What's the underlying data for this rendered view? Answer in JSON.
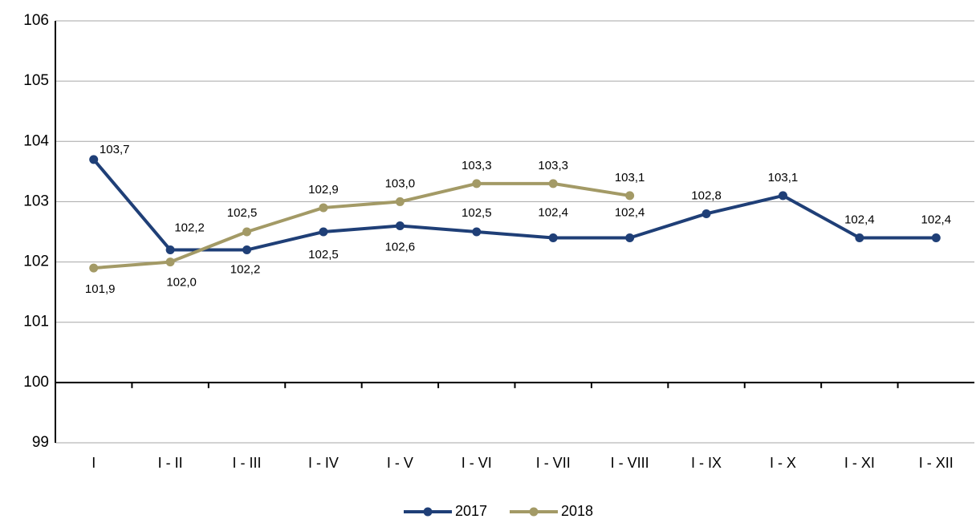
{
  "chart_data": {
    "type": "line",
    "categories": [
      "I",
      "I - II",
      "I - III",
      "I - IV",
      "I - V",
      "I - VI",
      "I - VII",
      "I - VIII",
      "I - IX",
      "I - X",
      "I - XI",
      "I - XII"
    ],
    "series": [
      {
        "name": "2017",
        "color": "#1f3f77",
        "values": [
          103.7,
          102.2,
          102.2,
          102.5,
          102.6,
          102.5,
          102.4,
          102.4,
          102.8,
          103.1,
          102.4,
          102.4
        ],
        "value_labels": [
          "103,7",
          "102,2",
          "102,2",
          "102,5",
          "102,6",
          "102,5",
          "102,4",
          "102,4",
          "102,8",
          "103,1",
          "102,4",
          "102,4"
        ]
      },
      {
        "name": "2018",
        "color": "#a39a66",
        "values": [
          101.9,
          102.0,
          102.5,
          102.9,
          103.0,
          103.3,
          103.3,
          103.1,
          null,
          null,
          null,
          null
        ],
        "value_labels": [
          "101,9",
          "102,0",
          "102,5",
          "102,9",
          "103,0",
          "103,3",
          "103,3",
          "103,1",
          null,
          null,
          null,
          null
        ]
      }
    ],
    "ylim": [
      99,
      106
    ],
    "yticks": [
      99,
      100,
      101,
      102,
      103,
      104,
      105,
      106
    ],
    "grid": true,
    "legend": "bottom"
  }
}
